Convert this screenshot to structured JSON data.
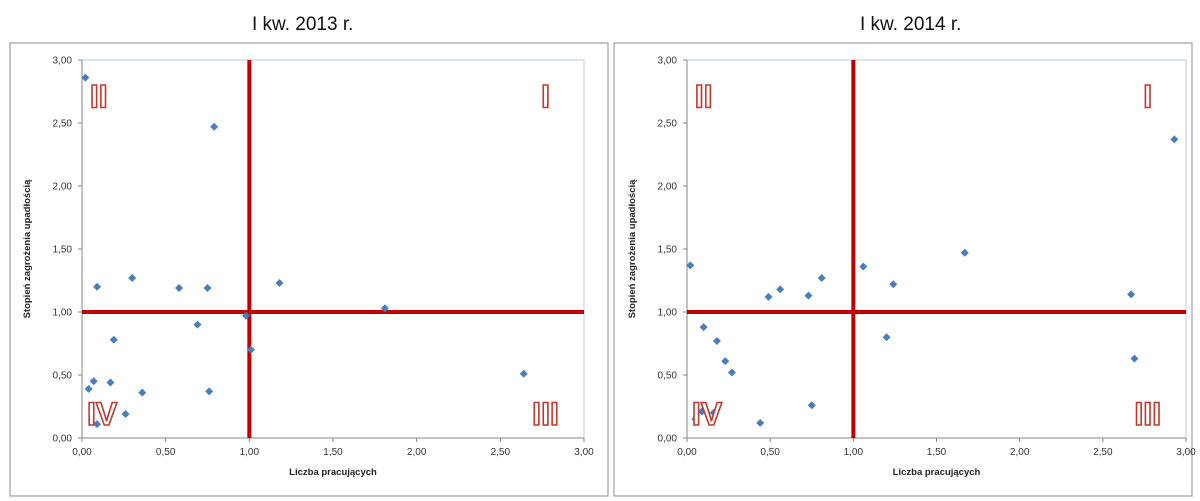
{
  "chart_data": [
    {
      "type": "scatter",
      "title": "I kw. 2013 r.",
      "xlabel": "Liczba pracujących",
      "ylabel": "Stopień zagrożenia upadłością",
      "xlim": [
        0,
        3
      ],
      "ylim": [
        0,
        3
      ],
      "x_ticks": [
        "0,00",
        "0,50",
        "1,00",
        "1,50",
        "2,00",
        "2,50",
        "3,00"
      ],
      "y_ticks": [
        "0,00",
        "0,50",
        "1,00",
        "1,50",
        "2,00",
        "2,50",
        "3,00"
      ],
      "grid": false,
      "reference_lines": {
        "x": 1.0,
        "y": 1.0,
        "color": "#c00000"
      },
      "quadrant_labels": [
        {
          "text": "I",
          "x": 2.77,
          "y": 2.72
        },
        {
          "text": "II",
          "x": 0.1,
          "y": 2.72
        },
        {
          "text": "III",
          "x": 2.77,
          "y": 0.2
        },
        {
          "text": "IV",
          "x": 0.12,
          "y": 0.2
        }
      ],
      "marker_color": "#4a7ebb",
      "points": [
        [
          0.02,
          2.86
        ],
        [
          0.79,
          2.47
        ],
        [
          0.3,
          1.27
        ],
        [
          0.09,
          1.2
        ],
        [
          0.58,
          1.19
        ],
        [
          0.75,
          1.19
        ],
        [
          1.18,
          1.23
        ],
        [
          1.81,
          1.03
        ],
        [
          0.98,
          0.97
        ],
        [
          0.69,
          0.9
        ],
        [
          1.01,
          0.7
        ],
        [
          0.19,
          0.78
        ],
        [
          2.64,
          0.51
        ],
        [
          0.07,
          0.45
        ],
        [
          0.04,
          0.39
        ],
        [
          0.17,
          0.44
        ],
        [
          0.36,
          0.36
        ],
        [
          0.76,
          0.37
        ],
        [
          0.26,
          0.19
        ],
        [
          0.09,
          0.11
        ]
      ]
    },
    {
      "type": "scatter",
      "title": "I kw. 2014 r.",
      "xlabel": "Liczba pracujących",
      "ylabel": "Stopień zagrożenia upadłością",
      "xlim": [
        0,
        3
      ],
      "ylim": [
        0,
        3
      ],
      "x_ticks": [
        "0,00",
        "0,50",
        "1,00",
        "1,50",
        "2,00",
        "2,50",
        "3,00"
      ],
      "y_ticks": [
        "0,00",
        "0,50",
        "1,00",
        "1,50",
        "2,00",
        "2,50",
        "3,00"
      ],
      "grid": false,
      "reference_lines": {
        "x": 1.0,
        "y": 1.0,
        "color": "#c00000"
      },
      "quadrant_labels": [
        {
          "text": "I",
          "x": 2.77,
          "y": 2.72
        },
        {
          "text": "II",
          "x": 0.1,
          "y": 2.72
        },
        {
          "text": "III",
          "x": 2.77,
          "y": 0.2
        },
        {
          "text": "IV",
          "x": 0.12,
          "y": 0.2
        }
      ],
      "marker_color": "#4a7ebb",
      "points": [
        [
          0.02,
          1.37
        ],
        [
          2.93,
          2.37
        ],
        [
          1.67,
          1.47
        ],
        [
          1.06,
          1.36
        ],
        [
          0.81,
          1.27
        ],
        [
          1.24,
          1.22
        ],
        [
          0.56,
          1.18
        ],
        [
          0.49,
          1.12
        ],
        [
          0.73,
          1.13
        ],
        [
          2.67,
          1.14
        ],
        [
          0.1,
          0.88
        ],
        [
          0.18,
          0.77
        ],
        [
          1.2,
          0.8
        ],
        [
          0.23,
          0.61
        ],
        [
          0.27,
          0.52
        ],
        [
          2.69,
          0.63
        ],
        [
          0.75,
          0.26
        ],
        [
          0.09,
          0.21
        ],
        [
          0.16,
          0.2
        ],
        [
          0.05,
          0.15
        ],
        [
          0.44,
          0.12
        ]
      ]
    }
  ]
}
